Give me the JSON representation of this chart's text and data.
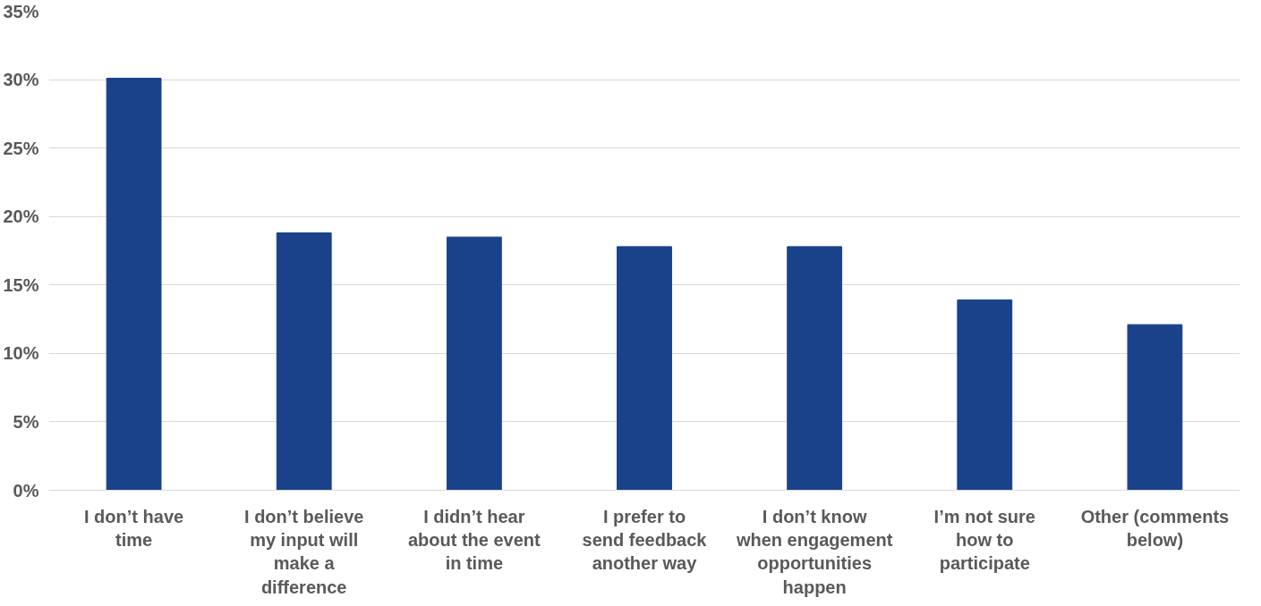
{
  "chart_data": {
    "type": "bar",
    "categories": [
      "I don’t have time",
      "I don’t believe my input will make a difference",
      "I didn’t hear about the event in time",
      "I prefer to send feedback another way",
      "I don’t know when engagement opportunities happen",
      "I’m not sure how to participate",
      "Other (comments below)"
    ],
    "values": [
      30.1,
      18.8,
      18.5,
      17.8,
      17.8,
      13.9,
      12.1
    ],
    "color": "#1a428a",
    "ylim": [
      0,
      35
    ],
    "yticks": [
      {
        "value": 0,
        "label": "0%"
      },
      {
        "value": 5,
        "label": "5%"
      },
      {
        "value": 10,
        "label": "10%"
      },
      {
        "value": 15,
        "label": "15%"
      },
      {
        "value": 20,
        "label": "20%"
      },
      {
        "value": 25,
        "label": "25%"
      },
      {
        "value": 30,
        "label": "30%"
      },
      {
        "value": 35,
        "label": "35%"
      }
    ],
    "grid": "y"
  }
}
